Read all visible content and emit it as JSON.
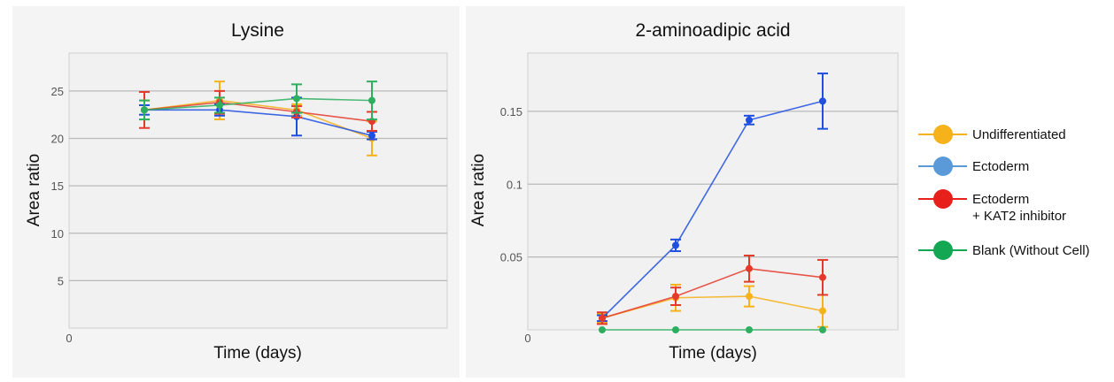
{
  "chart_data": [
    {
      "type": "line",
      "title": "Lysine",
      "xlabel": "Time (days)",
      "ylabel": "Area ratio",
      "x_origin_label": "0",
      "x": [
        1,
        2,
        3,
        4
      ],
      "ylim": [
        0,
        29
      ],
      "yticks": [
        "5",
        "10",
        "15",
        "20",
        "25"
      ],
      "ytick_values": [
        5,
        10,
        15,
        20,
        25
      ],
      "grid": true,
      "series": [
        {
          "name": "Undifferentiated",
          "color": "#f5b21b",
          "values": [
            23.0,
            24.0,
            23.0,
            20.0
          ],
          "errors": [
            1.0,
            2.0,
            0.6,
            1.8
          ]
        },
        {
          "name": "Ectoderm",
          "color": "#1f4fe0",
          "values": [
            23.0,
            23.0,
            22.3,
            20.3
          ],
          "errors": [
            0.5,
            0.6,
            2.0,
            0.4
          ]
        },
        {
          "name": "Ectoderm + KAT2 inhibitor",
          "color": "#e53a2b",
          "values": [
            23.0,
            23.8,
            22.8,
            21.8
          ],
          "errors": [
            1.9,
            1.2,
            0.6,
            1.0
          ]
        },
        {
          "name": "Blank (Without Cell)",
          "color": "#2eaf60",
          "values": [
            23.0,
            23.5,
            24.2,
            24.0
          ],
          "errors": [
            1.0,
            0.8,
            1.5,
            2.0
          ]
        }
      ]
    },
    {
      "type": "line",
      "title": "2-aminoadipic acid",
      "xlabel": "Time (days)",
      "ylabel": "Area ratio",
      "x_origin_label": "0",
      "x": [
        1,
        2,
        3,
        4
      ],
      "ylim": [
        0,
        0.19
      ],
      "yticks": [
        "0.05",
        "0.1",
        "0.15"
      ],
      "ytick_values": [
        0.05,
        0.1,
        0.15
      ],
      "grid": true,
      "series": [
        {
          "name": "Undifferentiated",
          "color": "#f5b21b",
          "values": [
            0.008,
            0.022,
            0.023,
            0.013
          ],
          "errors": [
            0.003,
            0.009,
            0.007,
            0.011
          ]
        },
        {
          "name": "Ectoderm",
          "color": "#1f4fe0",
          "values": [
            0.008,
            0.058,
            0.144,
            0.157
          ],
          "errors": [
            0.002,
            0.004,
            0.003,
            0.019
          ]
        },
        {
          "name": "Ectoderm + KAT2 inhibitor",
          "color": "#e53a2b",
          "values": [
            0.008,
            0.023,
            0.042,
            0.036
          ],
          "errors": [
            0.004,
            0.006,
            0.009,
            0.012
          ]
        },
        {
          "name": "Blank (Without Cell)",
          "color": "#2eaf60",
          "values": [
            0.0,
            0.0,
            0.0,
            0.0
          ],
          "errors": [
            0,
            0,
            0,
            0
          ]
        }
      ]
    }
  ],
  "legend": {
    "placement": "right",
    "items": [
      {
        "label_lines": [
          "Undifferentiated"
        ],
        "color": "#f5b21b"
      },
      {
        "label_lines": [
          "Ectoderm"
        ],
        "color": "#5b9ad8"
      },
      {
        "label_lines": [
          "Ectoderm",
          "+ KAT2 inhibitor"
        ],
        "color": "#e8201c"
      },
      {
        "label_lines": [
          "Blank (Without Cell)"
        ],
        "color": "#13a753"
      }
    ]
  }
}
